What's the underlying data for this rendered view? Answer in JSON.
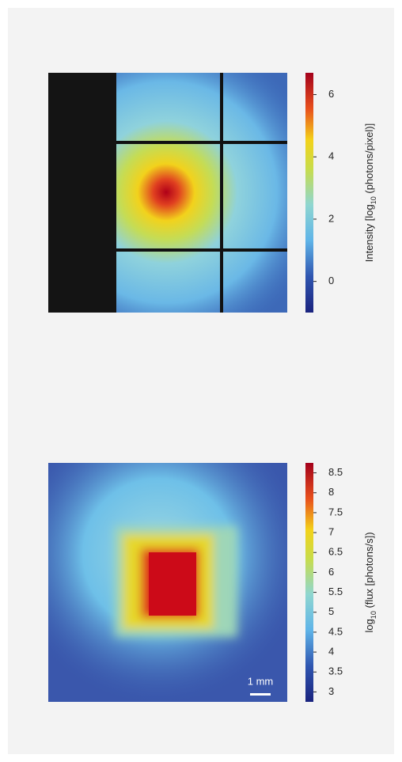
{
  "panels": [
    {
      "colorbar": {
        "label_parts": [
          "Intensity [log",
          "10",
          " (photons/pixel)]"
        ],
        "lim": [
          -1,
          6.7
        ],
        "ticks": [
          0,
          2,
          4,
          6
        ]
      }
    },
    {
      "colorbar": {
        "label_parts": [
          "log",
          "10",
          " (flux [photons/s])"
        ],
        "lim": [
          2.75,
          8.75
        ],
        "ticks": [
          3,
          3.5,
          4,
          4.5,
          5,
          5.5,
          6,
          6.5,
          7,
          7.5,
          8,
          8.5
        ]
      },
      "scale_bar": "1 mm"
    }
  ]
}
